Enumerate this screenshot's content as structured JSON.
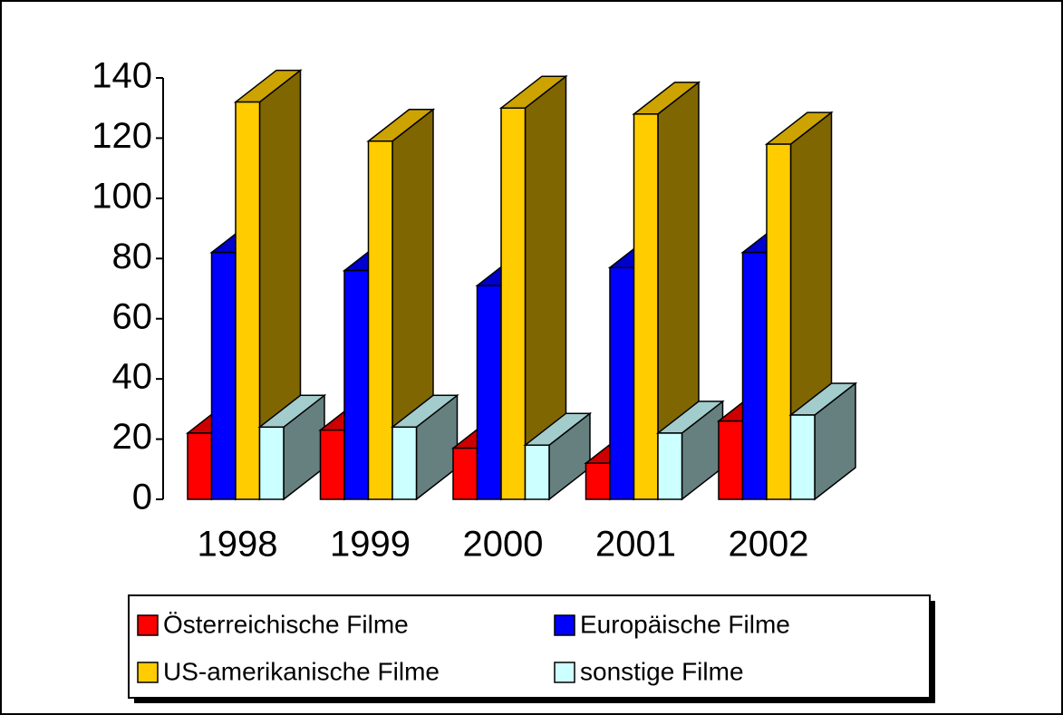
{
  "chart_data": {
    "type": "bar3d",
    "categories": [
      "1998",
      "1999",
      "2000",
      "2001",
      "2002"
    ],
    "series": [
      {
        "name": "Österreichische Filme",
        "color": "#ff0000",
        "values": [
          22,
          23,
          17,
          12,
          26
        ]
      },
      {
        "name": "Europäische Filme",
        "color": "#0000ff",
        "values": [
          82,
          76,
          71,
          77,
          82
        ]
      },
      {
        "name": "US-amerikanische Filme",
        "color": "#ffcc00",
        "values": [
          132,
          119,
          130,
          128,
          118
        ]
      },
      {
        "name": "sonstige Filme",
        "color": "#ccffff",
        "values": [
          24,
          24,
          18,
          22,
          28
        ]
      }
    ],
    "ylim": [
      0,
      140
    ],
    "yticks": [
      0,
      20,
      40,
      60,
      80,
      100,
      120,
      140
    ],
    "grid": false
  }
}
